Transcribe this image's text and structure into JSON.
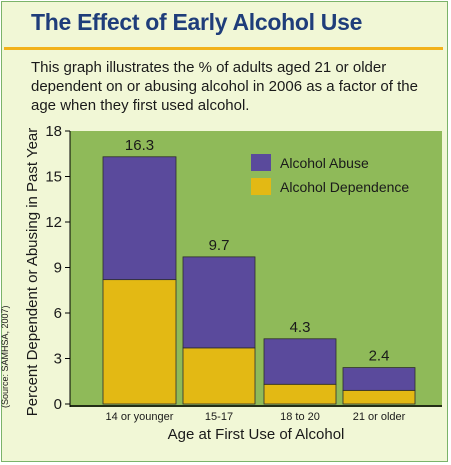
{
  "title": "The Effect of Early Alcohol Use",
  "description": "This graph illustrates the % of adults aged 21 or older dependent on or abusing alcohol in 2006 as a factor of the age when they first used alcohol.",
  "source": "(Source: SAMHSA, 2007)",
  "colors": {
    "abuse": "#5a4a9c",
    "dependence": "#e3b914",
    "plot_bg": "#8fba59",
    "title": "#1f3d7a",
    "rule": "#f2b21b"
  },
  "chart_data": {
    "type": "bar",
    "stacked": true,
    "categories": [
      "14 or younger",
      "15-17",
      "18 to 20",
      "21 or older"
    ],
    "series": [
      {
        "name": "Alcohol Dependence",
        "values": [
          8.2,
          3.7,
          1.3,
          0.9
        ]
      },
      {
        "name": "Alcohol Abuse",
        "values": [
          8.1,
          6.0,
          3.0,
          1.5
        ]
      }
    ],
    "totals": [
      16.3,
      9.7,
      4.3,
      2.4
    ],
    "total_labels": [
      "16.3",
      "9.7",
      "4.3",
      "2.4"
    ],
    "xlabel": "Age at First Use of Alcohol",
    "ylabel": "Percent Dependent or Abusing in Past Year",
    "ylim": [
      0,
      18
    ],
    "yticks": [
      0,
      3,
      6,
      9,
      12,
      15,
      18
    ],
    "legend": [
      "Alcohol Abuse",
      "Alcohol Dependence"
    ],
    "legend_position": "top-right",
    "grid": false
  }
}
